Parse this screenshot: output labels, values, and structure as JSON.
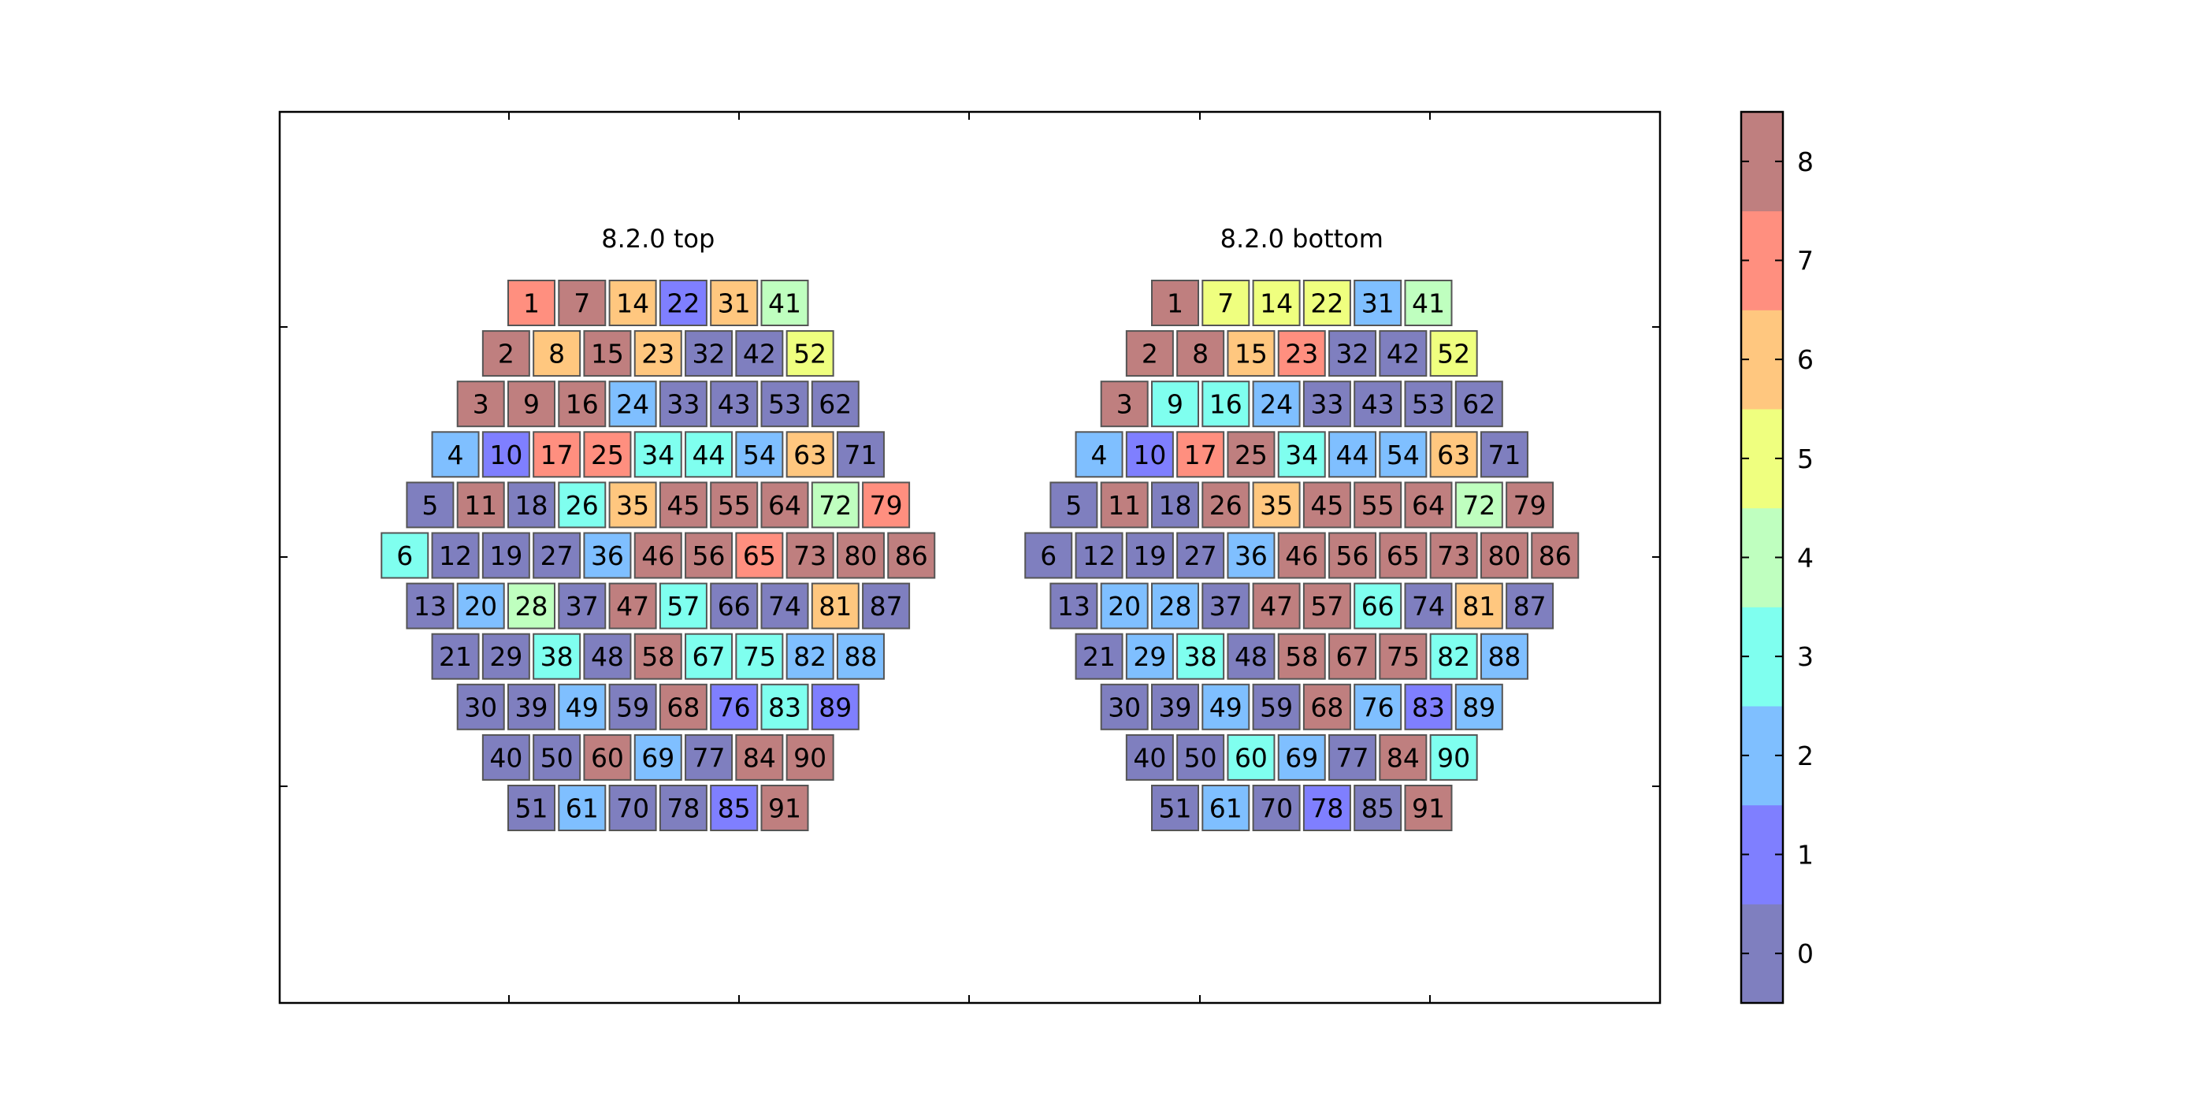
{
  "chart_data": {
    "type": "heatmap",
    "colorbar": {
      "ticks": [
        "0",
        "1",
        "2",
        "3",
        "4",
        "5",
        "6",
        "7",
        "8"
      ],
      "colors": [
        "#7f7fbf",
        "#7f7fff",
        "#7fbfff",
        "#7fffef",
        "#bfffbf",
        "#efff7f",
        "#ffc77f",
        "#ff8f7f",
        "#bf7f7f"
      ]
    },
    "panels": [
      {
        "title": "8.2.0 top",
        "rows": [
          {
            "offset": 0,
            "cells": [
              {
                "id": "1",
                "v": 7
              },
              {
                "id": "7",
                "v": 8
              },
              {
                "id": "14",
                "v": 6
              },
              {
                "id": "22",
                "v": 1
              },
              {
                "id": "31",
                "v": 6
              },
              {
                "id": "41",
                "v": 4
              }
            ]
          },
          {
            "offset": -1,
            "cells": [
              {
                "id": "2",
                "v": 8
              },
              {
                "id": "8",
                "v": 6
              },
              {
                "id": "15",
                "v": 8
              },
              {
                "id": "23",
                "v": 6
              },
              {
                "id": "32",
                "v": 0
              },
              {
                "id": "42",
                "v": 0
              },
              {
                "id": "52",
                "v": 5
              }
            ]
          },
          {
            "offset": -2,
            "cells": [
              {
                "id": "3",
                "v": 8
              },
              {
                "id": "9",
                "v": 8
              },
              {
                "id": "16",
                "v": 8
              },
              {
                "id": "24",
                "v": 2
              },
              {
                "id": "33",
                "v": 0
              },
              {
                "id": "43",
                "v": 0
              },
              {
                "id": "53",
                "v": 0
              },
              {
                "id": "62",
                "v": 0
              }
            ]
          },
          {
            "offset": -3,
            "cells": [
              {
                "id": "4",
                "v": 2
              },
              {
                "id": "10",
                "v": 1
              },
              {
                "id": "17",
                "v": 7
              },
              {
                "id": "25",
                "v": 7
              },
              {
                "id": "34",
                "v": 3
              },
              {
                "id": "44",
                "v": 3
              },
              {
                "id": "54",
                "v": 2
              },
              {
                "id": "63",
                "v": 6
              },
              {
                "id": "71",
                "v": 0
              }
            ]
          },
          {
            "offset": -4,
            "cells": [
              {
                "id": "5",
                "v": 0
              },
              {
                "id": "11",
                "v": 8
              },
              {
                "id": "18",
                "v": 0
              },
              {
                "id": "26",
                "v": 3
              },
              {
                "id": "35",
                "v": 6
              },
              {
                "id": "45",
                "v": 8
              },
              {
                "id": "55",
                "v": 8
              },
              {
                "id": "64",
                "v": 8
              },
              {
                "id": "72",
                "v": 4
              },
              {
                "id": "79",
                "v": 7
              }
            ]
          },
          {
            "offset": -5,
            "cells": [
              {
                "id": "6",
                "v": 3
              },
              {
                "id": "12",
                "v": 0
              },
              {
                "id": "19",
                "v": 0
              },
              {
                "id": "27",
                "v": 0
              },
              {
                "id": "36",
                "v": 2
              },
              {
                "id": "46",
                "v": 8
              },
              {
                "id": "56",
                "v": 8
              },
              {
                "id": "65",
                "v": 7
              },
              {
                "id": "73",
                "v": 8
              },
              {
                "id": "80",
                "v": 8
              },
              {
                "id": "86",
                "v": 8
              }
            ]
          },
          {
            "offset": -4,
            "cells": [
              {
                "id": "13",
                "v": 0
              },
              {
                "id": "20",
                "v": 2
              },
              {
                "id": "28",
                "v": 4
              },
              {
                "id": "37",
                "v": 0
              },
              {
                "id": "47",
                "v": 8
              },
              {
                "id": "57",
                "v": 3
              },
              {
                "id": "66",
                "v": 0
              },
              {
                "id": "74",
                "v": 0
              },
              {
                "id": "81",
                "v": 6
              },
              {
                "id": "87",
                "v": 0
              }
            ]
          },
          {
            "offset": -3,
            "cells": [
              {
                "id": "21",
                "v": 0
              },
              {
                "id": "29",
                "v": 0
              },
              {
                "id": "38",
                "v": 3
              },
              {
                "id": "48",
                "v": 0
              },
              {
                "id": "58",
                "v": 8
              },
              {
                "id": "67",
                "v": 3
              },
              {
                "id": "75",
                "v": 3
              },
              {
                "id": "82",
                "v": 2
              },
              {
                "id": "88",
                "v": 2
              }
            ]
          },
          {
            "offset": -2,
            "cells": [
              {
                "id": "30",
                "v": 0
              },
              {
                "id": "39",
                "v": 0
              },
              {
                "id": "49",
                "v": 2
              },
              {
                "id": "59",
                "v": 0
              },
              {
                "id": "68",
                "v": 8
              },
              {
                "id": "76",
                "v": 1
              },
              {
                "id": "83",
                "v": 3
              },
              {
                "id": "89",
                "v": 1
              }
            ]
          },
          {
            "offset": -1,
            "cells": [
              {
                "id": "40",
                "v": 0
              },
              {
                "id": "50",
                "v": 0
              },
              {
                "id": "60",
                "v": 8
              },
              {
                "id": "69",
                "v": 2
              },
              {
                "id": "77",
                "v": 0
              },
              {
                "id": "84",
                "v": 8
              },
              {
                "id": "90",
                "v": 8
              }
            ]
          },
          {
            "offset": 0,
            "cells": [
              {
                "id": "51",
                "v": 0
              },
              {
                "id": "61",
                "v": 2
              },
              {
                "id": "70",
                "v": 0
              },
              {
                "id": "78",
                "v": 0
              },
              {
                "id": "85",
                "v": 1
              },
              {
                "id": "91",
                "v": 8
              }
            ]
          }
        ]
      },
      {
        "title": "8.2.0 bottom",
        "rows": [
          {
            "offset": 0,
            "cells": [
              {
                "id": "1",
                "v": 8
              },
              {
                "id": "7",
                "v": 5
              },
              {
                "id": "14",
                "v": 5
              },
              {
                "id": "22",
                "v": 5
              },
              {
                "id": "31",
                "v": 2
              },
              {
                "id": "41",
                "v": 4
              }
            ]
          },
          {
            "offset": -1,
            "cells": [
              {
                "id": "2",
                "v": 8
              },
              {
                "id": "8",
                "v": 8
              },
              {
                "id": "15",
                "v": 6
              },
              {
                "id": "23",
                "v": 7
              },
              {
                "id": "32",
                "v": 0
              },
              {
                "id": "42",
                "v": 0
              },
              {
                "id": "52",
                "v": 5
              }
            ]
          },
          {
            "offset": -2,
            "cells": [
              {
                "id": "3",
                "v": 8
              },
              {
                "id": "9",
                "v": 3
              },
              {
                "id": "16",
                "v": 3
              },
              {
                "id": "24",
                "v": 2
              },
              {
                "id": "33",
                "v": 0
              },
              {
                "id": "43",
                "v": 0
              },
              {
                "id": "53",
                "v": 0
              },
              {
                "id": "62",
                "v": 0
              }
            ]
          },
          {
            "offset": -3,
            "cells": [
              {
                "id": "4",
                "v": 2
              },
              {
                "id": "10",
                "v": 1
              },
              {
                "id": "17",
                "v": 7
              },
              {
                "id": "25",
                "v": 8
              },
              {
                "id": "34",
                "v": 3
              },
              {
                "id": "44",
                "v": 2
              },
              {
                "id": "54",
                "v": 2
              },
              {
                "id": "63",
                "v": 6
              },
              {
                "id": "71",
                "v": 0
              }
            ]
          },
          {
            "offset": -4,
            "cells": [
              {
                "id": "5",
                "v": 0
              },
              {
                "id": "11",
                "v": 8
              },
              {
                "id": "18",
                "v": 0
              },
              {
                "id": "26",
                "v": 8
              },
              {
                "id": "35",
                "v": 6
              },
              {
                "id": "45",
                "v": 8
              },
              {
                "id": "55",
                "v": 8
              },
              {
                "id": "64",
                "v": 8
              },
              {
                "id": "72",
                "v": 4
              },
              {
                "id": "79",
                "v": 8
              }
            ]
          },
          {
            "offset": -5,
            "cells": [
              {
                "id": "6",
                "v": 0
              },
              {
                "id": "12",
                "v": 0
              },
              {
                "id": "19",
                "v": 0
              },
              {
                "id": "27",
                "v": 0
              },
              {
                "id": "36",
                "v": 2
              },
              {
                "id": "46",
                "v": 8
              },
              {
                "id": "56",
                "v": 8
              },
              {
                "id": "65",
                "v": 8
              },
              {
                "id": "73",
                "v": 8
              },
              {
                "id": "80",
                "v": 8
              },
              {
                "id": "86",
                "v": 8
              }
            ]
          },
          {
            "offset": -4,
            "cells": [
              {
                "id": "13",
                "v": 0
              },
              {
                "id": "20",
                "v": 2
              },
              {
                "id": "28",
                "v": 2
              },
              {
                "id": "37",
                "v": 0
              },
              {
                "id": "47",
                "v": 8
              },
              {
                "id": "57",
                "v": 8
              },
              {
                "id": "66",
                "v": 3
              },
              {
                "id": "74",
                "v": 0
              },
              {
                "id": "81",
                "v": 6
              },
              {
                "id": "87",
                "v": 0
              }
            ]
          },
          {
            "offset": -3,
            "cells": [
              {
                "id": "21",
                "v": 0
              },
              {
                "id": "29",
                "v": 2
              },
              {
                "id": "38",
                "v": 3
              },
              {
                "id": "48",
                "v": 0
              },
              {
                "id": "58",
                "v": 8
              },
              {
                "id": "67",
                "v": 8
              },
              {
                "id": "75",
                "v": 8
              },
              {
                "id": "82",
                "v": 3
              },
              {
                "id": "88",
                "v": 2
              }
            ]
          },
          {
            "offset": -2,
            "cells": [
              {
                "id": "30",
                "v": 0
              },
              {
                "id": "39",
                "v": 0
              },
              {
                "id": "49",
                "v": 2
              },
              {
                "id": "59",
                "v": 0
              },
              {
                "id": "68",
                "v": 8
              },
              {
                "id": "76",
                "v": 2
              },
              {
                "id": "83",
                "v": 1
              },
              {
                "id": "89",
                "v": 2
              }
            ]
          },
          {
            "offset": -1,
            "cells": [
              {
                "id": "40",
                "v": 0
              },
              {
                "id": "50",
                "v": 0
              },
              {
                "id": "60",
                "v": 3
              },
              {
                "id": "69",
                "v": 2
              },
              {
                "id": "77",
                "v": 0
              },
              {
                "id": "84",
                "v": 8
              },
              {
                "id": "90",
                "v": 3
              }
            ]
          },
          {
            "offset": 0,
            "cells": [
              {
                "id": "51",
                "v": 0
              },
              {
                "id": "61",
                "v": 2
              },
              {
                "id": "70",
                "v": 0
              },
              {
                "id": "78",
                "v": 1
              },
              {
                "id": "85",
                "v": 0
              },
              {
                "id": "91",
                "v": 8
              }
            ]
          }
        ]
      }
    ],
    "grid": false,
    "legend": "none"
  }
}
